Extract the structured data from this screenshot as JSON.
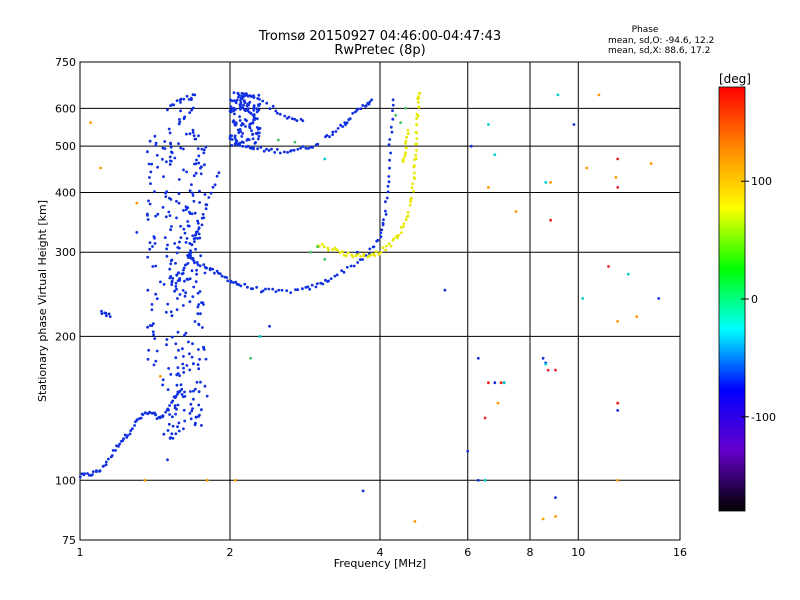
{
  "chart_data": {
    "type": "scatter",
    "title": "Tromsø 20150927 04:46:00-04:47:43",
    "subtitle": "RwPretec (8p)",
    "xlabel": "Frequency [MHz]",
    "ylabel": "Stationary phase Virtual Height [km]",
    "x_scale": "log",
    "y_scale": "log",
    "xlim": [
      1,
      16
    ],
    "ylim": [
      75,
      750
    ],
    "x_ticks": [
      1,
      2,
      4,
      6,
      8,
      10,
      16
    ],
    "x_tick_labels": [
      "1",
      "2",
      "4",
      "6",
      "8",
      "10",
      "16"
    ],
    "y_ticks": [
      75,
      100,
      200,
      300,
      400,
      500,
      600,
      750
    ],
    "y_tick_labels": [
      "75",
      "100",
      "200",
      "300",
      "400",
      "500",
      "600",
      "750"
    ],
    "grid": true,
    "phase_stats": {
      "title": "Phase",
      "line_o": "mean, sd,O: -94.6, 12.2",
      "line_x": "mean, sd,X:  88.6, 17.2"
    },
    "colorbar": {
      "label": "[deg]",
      "range": [
        -180,
        180
      ],
      "ticks": [
        100,
        0,
        -100
      ],
      "tick_labels": [
        "100",
        "0",
        "-100"
      ],
      "colors": [
        "#ff0000",
        "#ff8800",
        "#ffff00",
        "#00ff00",
        "#00ffff",
        "#0000ff",
        "#6600cc",
        "#000000"
      ]
    },
    "series": [
      {
        "phase_deg": -100,
        "color": "#1030e0",
        "mode": "trace",
        "segments": [
          [
            [
              1.0,
              102
            ],
            [
              1.05,
              103
            ],
            [
              1.1,
              105
            ],
            [
              1.15,
              112
            ],
            [
              1.2,
              120
            ],
            [
              1.25,
              125
            ],
            [
              1.3,
              133
            ],
            [
              1.35,
              138
            ],
            [
              1.4,
              138
            ],
            [
              1.45,
              134
            ],
            [
              1.5,
              140
            ],
            [
              1.55,
              150
            ],
            [
              1.6,
              155
            ]
          ],
          [
            [
              1.65,
              295
            ],
            [
              1.7,
              288
            ],
            [
              1.8,
              278
            ],
            [
              1.9,
              270
            ],
            [
              2.0,
              262
            ],
            [
              2.1,
              256
            ],
            [
              2.3,
              250
            ],
            [
              2.5,
              248
            ],
            [
              2.8,
              250
            ],
            [
              3.0,
              256
            ],
            [
              3.2,
              265
            ],
            [
              3.5,
              280
            ],
            [
              3.8,
              298
            ],
            [
              4.0,
              322
            ],
            [
              4.1,
              360
            ],
            [
              4.15,
              420
            ],
            [
              4.2,
              520
            ],
            [
              4.25,
              625
            ]
          ],
          [
            [
              1.55,
              250
            ],
            [
              1.6,
              270
            ],
            [
              1.65,
              290
            ],
            [
              1.7,
              320
            ],
            [
              1.75,
              345
            ],
            [
              1.8,
              380
            ],
            [
              1.9,
              440
            ]
          ],
          [
            [
              2.05,
              505
            ],
            [
              2.2,
              495
            ],
            [
              2.4,
              490
            ],
            [
              2.6,
              488
            ],
            [
              2.8,
              495
            ],
            [
              3.0,
              505
            ]
          ],
          [
            [
              3.1,
              520
            ],
            [
              3.3,
              545
            ],
            [
              3.5,
              575
            ],
            [
              3.7,
              605
            ],
            [
              3.85,
              625
            ]
          ],
          [
            [
              2.05,
              620
            ],
            [
              2.2,
              640
            ],
            [
              2.4,
              605
            ],
            [
              2.6,
              575
            ],
            [
              2.8,
              565
            ]
          ],
          [
            [
              1.5,
              600
            ],
            [
              1.6,
              625
            ],
            [
              1.7,
              640
            ]
          ],
          [
            [
              1.1,
              225
            ],
            [
              1.15,
              220
            ]
          ]
        ]
      },
      {
        "phase_deg": -100,
        "color": "#1030e0",
        "mode": "column",
        "columns": [
          {
            "x": 1.5,
            "ymin": 110,
            "ymax": 560
          },
          {
            "x": 1.55,
            "ymin": 120,
            "ymax": 600
          },
          {
            "x": 1.6,
            "ymin": 125,
            "ymax": 640
          },
          {
            "x": 1.65,
            "ymin": 125,
            "ymax": 630
          },
          {
            "x": 1.7,
            "ymin": 130,
            "ymax": 600
          },
          {
            "x": 1.75,
            "ymin": 125,
            "ymax": 520
          },
          {
            "x": 1.4,
            "ymin": 170,
            "ymax": 560
          },
          {
            "x": 2.05,
            "ymin": 500,
            "ymax": 650
          },
          {
            "x": 2.15,
            "ymin": 500,
            "ymax": 645
          },
          {
            "x": 2.25,
            "ymin": 495,
            "ymax": 640
          }
        ]
      },
      {
        "phase_deg": 100,
        "color": "#e8e800",
        "mode": "trace",
        "segments": [
          [
            [
              3.0,
              312
            ],
            [
              3.2,
              305
            ],
            [
              3.4,
              298
            ],
            [
              3.6,
              295
            ],
            [
              3.8,
              296
            ],
            [
              4.0,
              300
            ],
            [
              4.2,
              312
            ],
            [
              4.4,
              330
            ],
            [
              4.55,
              360
            ],
            [
              4.65,
              400
            ],
            [
              4.7,
              450
            ],
            [
              4.72,
              500
            ],
            [
              4.75,
              560
            ],
            [
              4.78,
              620
            ],
            [
              4.8,
              645
            ]
          ],
          [
            [
              4.45,
              460
            ],
            [
              4.5,
              500
            ],
            [
              4.55,
              540
            ]
          ]
        ]
      },
      {
        "phase_deg": 40,
        "color": "#40c060",
        "mode": "points",
        "points": [
          [
            3.0,
            308
          ],
          [
            3.1,
            290
          ],
          [
            2.9,
            300
          ],
          [
            4.3,
            580
          ],
          [
            4.4,
            560
          ],
          [
            4.5,
            600
          ],
          [
            2.7,
            510
          ],
          [
            2.5,
            515
          ],
          [
            2.2,
            180
          ]
        ]
      },
      {
        "phase_deg": 120,
        "color": "#ff9900",
        "mode": "points",
        "points": [
          [
            1.05,
            560
          ],
          [
            1.1,
            450
          ],
          [
            1.3,
            380
          ],
          [
            1.45,
            165
          ],
          [
            1.35,
            100
          ],
          [
            1.8,
            100
          ],
          [
            2.05,
            100
          ],
          [
            4.7,
            82
          ],
          [
            6.6,
            410
          ],
          [
            6.9,
            145
          ],
          [
            7.5,
            365
          ],
          [
            8.8,
            420
          ],
          [
            8.5,
            83
          ],
          [
            9.0,
            84
          ],
          [
            10.4,
            450
          ],
          [
            11.0,
            640
          ],
          [
            11.9,
            430
          ],
          [
            12.0,
            145
          ],
          [
            12.0,
            100
          ],
          [
            12.0,
            215
          ],
          [
            13.1,
            220
          ],
          [
            14.0,
            460
          ]
        ]
      },
      {
        "phase_deg": 150,
        "color": "#ee2222",
        "mode": "points",
        "points": [
          [
            6.5,
            135
          ],
          [
            6.6,
            160
          ],
          [
            7.0,
            160
          ],
          [
            8.8,
            350
          ],
          [
            9.0,
            170
          ],
          [
            12.0,
            470
          ],
          [
            12.0,
            410
          ],
          [
            12.0,
            145
          ],
          [
            11.5,
            280
          ],
          [
            8.7,
            170
          ]
        ]
      },
      {
        "phase_deg": -100,
        "color": "#1030e0",
        "mode": "points",
        "points": [
          [
            1.4,
            280
          ],
          [
            1.45,
            260
          ],
          [
            1.3,
            330
          ],
          [
            1.8,
            150
          ],
          [
            3.4,
            560
          ],
          [
            3.6,
            300
          ],
          [
            2.4,
            210
          ],
          [
            3.7,
            95
          ],
          [
            6.0,
            115
          ],
          [
            6.3,
            100
          ],
          [
            6.8,
            160
          ],
          [
            7.1,
            160
          ],
          [
            8.5,
            180
          ],
          [
            8.6,
            176
          ],
          [
            9.0,
            92
          ],
          [
            9.8,
            555
          ],
          [
            12.0,
            140
          ],
          [
            14.5,
            240
          ],
          [
            6.1,
            500
          ],
          [
            6.3,
            180
          ],
          [
            5.4,
            250
          ]
        ]
      },
      {
        "phase_deg": 10,
        "color": "#00cccc",
        "mode": "points",
        "points": [
          [
            6.6,
            555
          ],
          [
            6.8,
            480
          ],
          [
            7.1,
            160
          ],
          [
            9.1,
            640
          ],
          [
            8.6,
            175
          ],
          [
            10.2,
            240
          ],
          [
            12.6,
            270
          ],
          [
            2.3,
            200
          ],
          [
            3.1,
            470
          ],
          [
            8.6,
            420
          ],
          [
            6.5,
            100
          ]
        ]
      }
    ]
  }
}
